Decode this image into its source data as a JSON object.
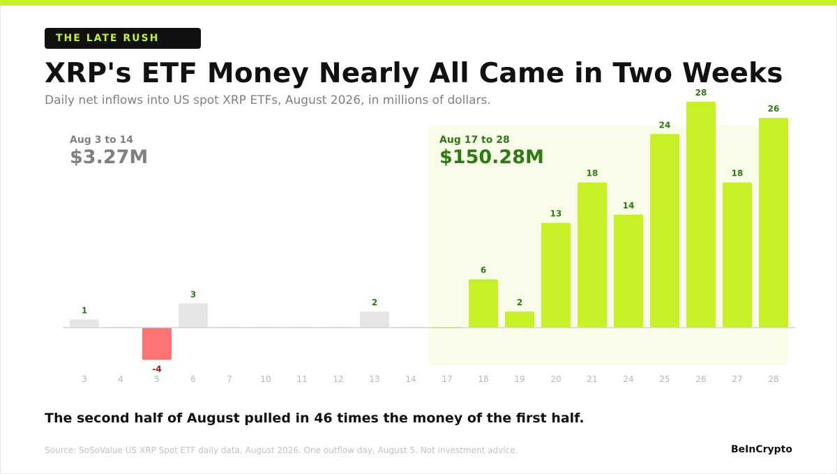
{
  "colors": {
    "accent": "#c8f026",
    "highlight_bg": "#f8fce8",
    "positive_label": "#2d7a12",
    "negative_bar": "#ff7373",
    "negative_label": "#a01818",
    "muted_bar": "#e5e5e5",
    "muted_text": "#808080",
    "tick": "#b8b8b8",
    "dark": "#111111"
  },
  "header": {
    "eyebrow": "THE LATE RUSH",
    "title": "XRP's ETF Money Nearly All Came in Two Weeks",
    "subtitle": "Daily net inflows into US spot XRP ETFs, August 2026, in millions of dollars."
  },
  "chart_data": {
    "type": "bar",
    "categories": [
      "3",
      "4",
      "5",
      "6",
      "7",
      "10",
      "11",
      "12",
      "13",
      "14",
      "17",
      "18",
      "19",
      "20",
      "21",
      "24",
      "25",
      "26",
      "27",
      "28"
    ],
    "values": [
      1,
      0,
      -4,
      3,
      0,
      0,
      0,
      0,
      2,
      0,
      0,
      6,
      2,
      13,
      18,
      14,
      24,
      28,
      18,
      26
    ],
    "data_labels": [
      "1",
      "",
      "-4",
      "3",
      "",
      "",
      "",
      "",
      "2",
      "",
      "",
      "6",
      "2",
      "13",
      "18",
      "14",
      "24",
      "28",
      "18",
      "26"
    ],
    "ylim": [
      -5.6,
      30
    ],
    "xlabel": "",
    "ylabel": "",
    "grid": false,
    "periods": [
      {
        "label": "Aug 3 to 14",
        "total": "$3.27M",
        "style": "muted"
      },
      {
        "label": "Aug 17 to 28",
        "total": "$150.28M",
        "style": "highlight"
      }
    ]
  },
  "takeaway": "The second half of August pulled in 46 times the money of the first half.",
  "footer": {
    "source": "Source: SoSoValue US XRP Spot ETF daily data, August 2026. One outflow day, August 5. Not investment advice.",
    "brand": "BeInCrypto"
  }
}
